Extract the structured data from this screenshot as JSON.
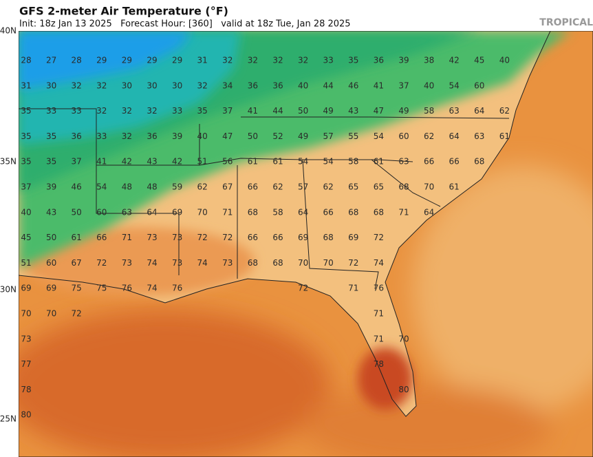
{
  "header": {
    "title": "GFS 2-meter Air Temperature (°F)",
    "info": "Init: 18z Jan 13 2025   Forecast Hour: [360]   valid at 18z Tue, Jan 28 2025",
    "credit": "TROPICAL"
  },
  "map": {
    "latitude_labels": [
      "40N",
      "35N",
      "30N",
      "25N"
    ],
    "temperature_rows": [
      [
        28,
        27,
        28,
        29,
        29,
        29,
        29,
        31,
        32,
        32,
        32,
        32,
        33,
        35,
        36,
        39,
        38,
        42,
        45,
        40
      ],
      [
        31,
        30,
        32,
        32,
        30,
        30,
        30,
        32,
        34,
        36,
        36,
        40,
        44,
        46,
        41,
        37,
        40,
        54,
        60
      ],
      [
        35,
        33,
        33,
        32,
        32,
        32,
        33,
        35,
        37,
        41,
        44,
        50,
        49,
        43,
        47,
        49,
        58,
        63,
        64,
        62
      ],
      [
        35,
        35,
        36,
        33,
        32,
        36,
        39,
        40,
        47,
        50,
        52,
        49,
        57,
        55,
        54,
        60,
        62,
        64,
        63,
        61
      ],
      [
        35,
        35,
        37,
        41,
        42,
        43,
        42,
        51,
        56,
        61,
        61,
        54,
        54,
        58,
        61,
        63,
        66,
        66,
        68
      ],
      [
        37,
        39,
        46,
        54,
        48,
        48,
        59,
        62,
        67,
        66,
        62,
        57,
        62,
        65,
        65,
        68,
        70,
        61
      ],
      [
        40,
        43,
        50,
        60,
        63,
        64,
        69,
        70,
        71,
        68,
        58,
        64,
        66,
        68,
        68,
        71,
        64
      ],
      [
        45,
        50,
        61,
        66,
        71,
        73,
        73,
        72,
        72,
        66,
        66,
        69,
        68,
        69,
        72
      ],
      [
        51,
        60,
        67,
        72,
        73,
        74,
        73,
        74,
        73,
        68,
        68,
        70,
        70,
        72,
        74
      ],
      [
        69,
        69,
        75,
        75,
        76,
        74,
        76,
        null,
        null,
        null,
        null,
        72,
        null,
        71,
        76
      ],
      [
        70,
        70,
        72,
        null,
        null,
        null,
        null,
        null,
        null,
        null,
        null,
        null,
        null,
        null,
        71
      ],
      [
        73,
        null,
        null,
        null,
        null,
        null,
        null,
        null,
        null,
        null,
        null,
        null,
        null,
        null,
        71,
        70
      ],
      [
        77,
        null,
        null,
        null,
        null,
        null,
        null,
        null,
        null,
        null,
        null,
        null,
        null,
        null,
        78
      ],
      [
        78,
        null,
        null,
        null,
        null,
        null,
        null,
        null,
        null,
        null,
        null,
        null,
        null,
        null,
        null,
        80
      ],
      [
        80
      ]
    ]
  }
}
